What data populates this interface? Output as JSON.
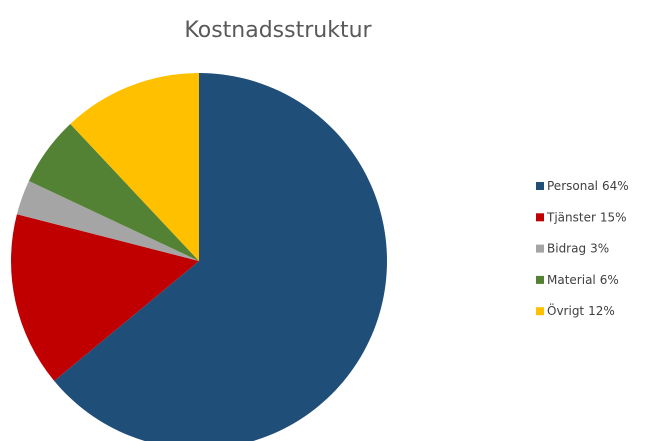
{
  "chart_data": {
    "type": "pie",
    "title": "Kostnadsstruktur",
    "categories": [
      "Personal",
      "Tjänster",
      "Bidrag",
      "Material",
      "Övrigt"
    ],
    "values": [
      64,
      15,
      3,
      6,
      12
    ],
    "value_labels": [
      "64%",
      "15%",
      "3%",
      "6%",
      "12%"
    ],
    "colors": [
      "#1f4e79",
      "#c00000",
      "#a5a5a5",
      "#548235",
      "#ffc000"
    ],
    "legend": "right"
  }
}
